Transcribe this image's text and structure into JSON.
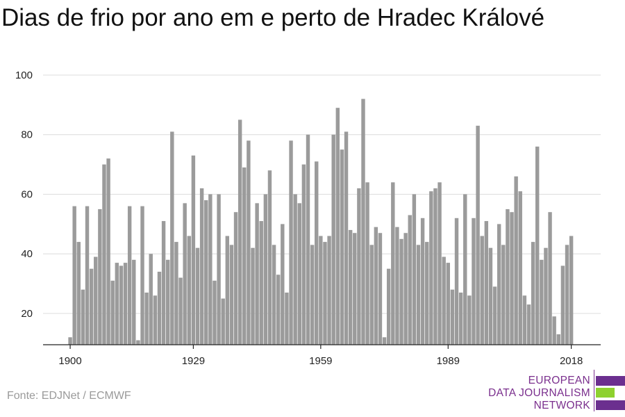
{
  "title": "Dias de frio por ano em e perto de Hradec Králové",
  "source": "Fonte: EDJNet / ECMWF",
  "logo": {
    "line1": "EUROPEAN",
    "line2": "DATA JOURNALISM",
    "line3": "NETWORK",
    "colors": [
      "#6b2f8f",
      "#8ed12f",
      "#6b2f8f"
    ]
  },
  "chart_data": {
    "type": "bar",
    "x_start": 1900,
    "x_end": 2019,
    "ylim": [
      9.5,
      100
    ],
    "yticks": [
      20,
      40,
      60,
      80,
      100
    ],
    "xticks": [
      1900,
      1929,
      1959,
      1989,
      2018
    ],
    "bar_color": "#9b9b9b",
    "grid": true,
    "values": [
      12,
      56,
      44,
      28,
      56,
      35,
      39,
      55,
      70,
      72,
      31,
      37,
      36,
      37,
      56,
      38,
      11,
      56,
      27,
      40,
      26,
      34,
      51,
      38,
      81,
      44,
      32,
      57,
      46,
      73,
      42,
      62,
      58,
      60,
      31,
      60,
      25,
      46,
      43,
      54,
      85,
      69,
      78,
      42,
      57,
      51,
      60,
      68,
      43,
      33,
      50,
      27,
      78,
      60,
      57,
      70,
      80,
      43,
      71,
      46,
      44,
      46,
      80,
      89,
      75,
      81,
      48,
      47,
      62,
      92,
      64,
      43,
      49,
      47,
      12,
      35,
      64,
      49,
      45,
      47,
      53,
      60,
      43,
      52,
      44,
      61,
      62,
      64,
      39,
      37,
      28,
      52,
      27,
      60,
      26,
      52,
      83,
      46,
      51,
      42,
      29,
      50,
      43,
      55,
      54,
      66,
      61,
      26,
      23,
      44,
      76,
      38,
      42,
      54,
      19,
      13,
      36,
      43,
      46
    ]
  }
}
